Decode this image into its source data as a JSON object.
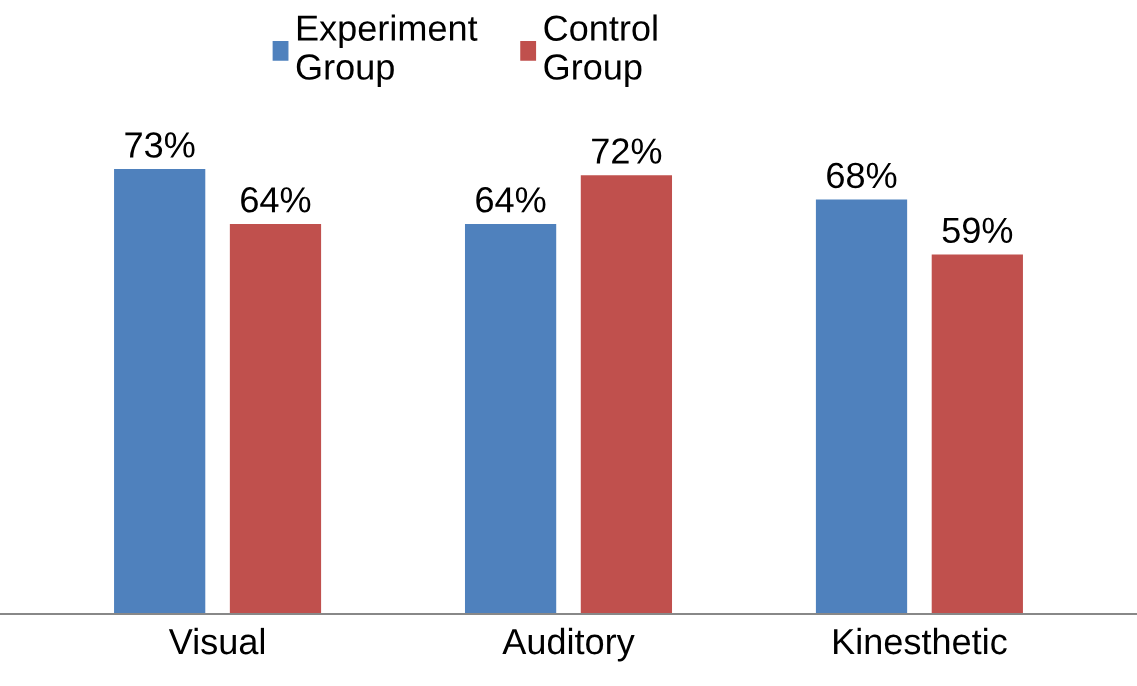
{
  "chart_data": {
    "type": "bar",
    "categories": [
      "Visual",
      "Auditory",
      "Kinesthetic"
    ],
    "series": [
      {
        "name": "Experiment\nGroup",
        "color": "#4f81bd",
        "values": [
          73,
          64,
          68
        ],
        "value_labels": [
          "73%",
          "64%",
          "68%"
        ]
      },
      {
        "name": "Control\nGroup",
        "color": "#c0504d",
        "values": [
          64,
          72,
          59
        ],
        "value_labels": [
          "64%",
          "72%",
          "59%"
        ]
      }
    ],
    "legend": "top",
    "grid": false
  }
}
